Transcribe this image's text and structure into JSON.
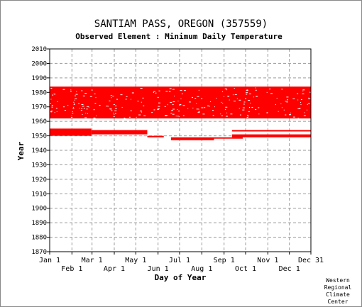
{
  "chart_data": {
    "type": "scatter",
    "title": "SANTIAM PASS, OREGON   (357559)",
    "subtitle": "Observed Element : Minimum Daily Temperature",
    "xlabel": "Day of Year",
    "ylabel": "Year",
    "xlim": [
      1,
      365
    ],
    "ylim": [
      1870,
      2010
    ],
    "y_ticks": [
      1870,
      1880,
      1890,
      1900,
      1910,
      1920,
      1930,
      1940,
      1950,
      1960,
      1970,
      1980,
      1990,
      2000,
      2010
    ],
    "x_ticks_top_row": [
      {
        "label": "Jan 1",
        "day": 1
      },
      {
        "label": "Mar 1",
        "day": 60
      },
      {
        "label": "May 1",
        "day": 121
      },
      {
        "label": "Jul 1",
        "day": 182
      },
      {
        "label": "Sep 1",
        "day": 244
      },
      {
        "label": "Nov 1",
        "day": 305
      },
      {
        "label": "Dec 31",
        "day": 365
      }
    ],
    "x_ticks_bottom_row": [
      {
        "label": "Feb 1",
        "day": 32
      },
      {
        "label": "Apr 1",
        "day": 91
      },
      {
        "label": "Jun 1",
        "day": 152
      },
      {
        "label": "Aug 1",
        "day": 213
      },
      {
        "label": "Oct 1",
        "day": 274
      },
      {
        "label": "Dec 1",
        "day": 335
      }
    ],
    "grid": true,
    "point_color": "#ff0000",
    "series": [
      {
        "data_blocks": [
          {
            "day_start": 1,
            "day_end": 365,
            "year_start": 1962,
            "year_end": 1984
          },
          {
            "day_start": 1,
            "day_end": 59,
            "year_start": 1950,
            "year_end": 1955
          },
          {
            "day_start": 59,
            "day_end": 137,
            "year_start": 1951,
            "year_end": 1954
          },
          {
            "day_start": 137,
            "day_end": 160,
            "year_start": 1949,
            "year_end": 1950
          },
          {
            "day_start": 170,
            "day_end": 230,
            "year_start": 1947,
            "year_end": 1949
          },
          {
            "day_start": 230,
            "day_end": 270,
            "year_start": 1948,
            "year_end": 1949
          },
          {
            "day_start": 255,
            "day_end": 365,
            "year_start": 1949,
            "year_end": 1951
          },
          {
            "day_start": 255,
            "day_end": 365,
            "year_start": 1953,
            "year_end": 1954
          }
        ]
      }
    ]
  },
  "credit": [
    "Western",
    "Regional",
    "Climate",
    "Center"
  ]
}
